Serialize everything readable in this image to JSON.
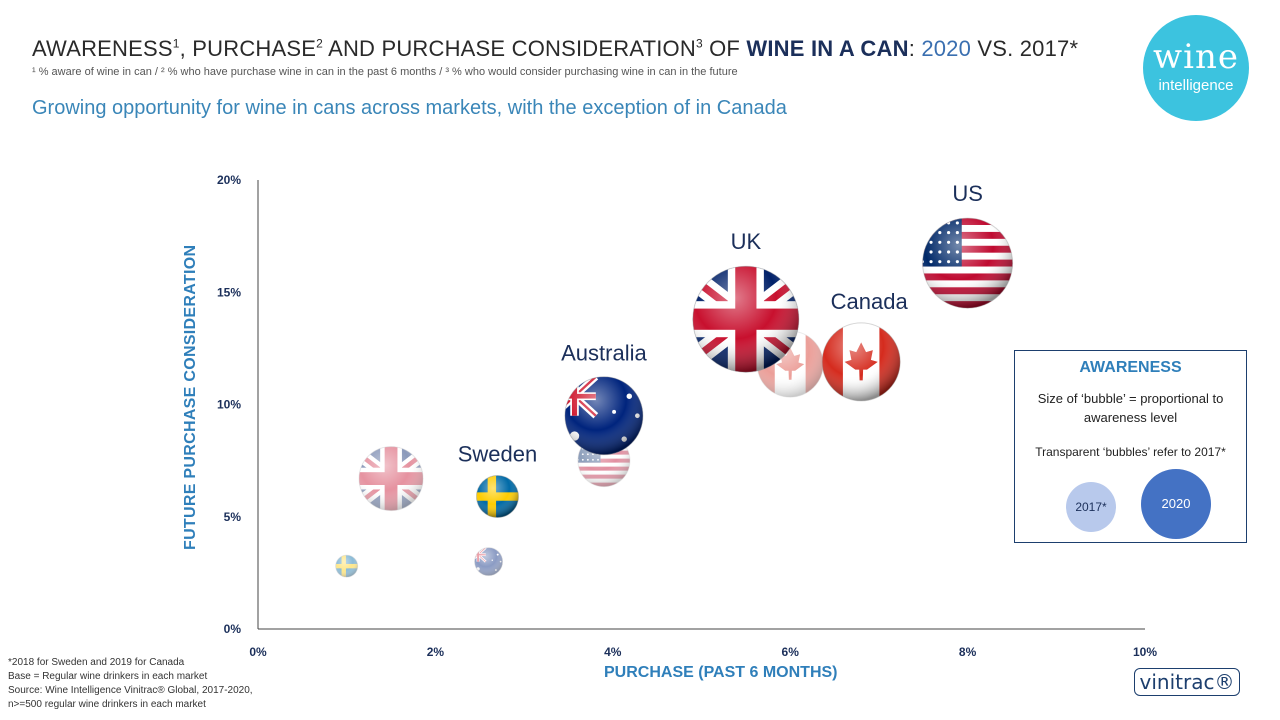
{
  "title": {
    "part1": "AWARENESS",
    "sup1": "1",
    "part2": ", PURCHASE",
    "sup2": "2",
    "part3": " AND PURCHASE CONSIDERATION",
    "sup3": "3",
    "part4": " OF ",
    "highlight": "WINE IN A CAN",
    "part5": ": ",
    "year_2020": "2020",
    "part6": " VS. 2017*"
  },
  "footnote_top": "¹ % aware of wine in can / ² % who have purchase wine in can in the past 6 months / ³ % who would consider purchasing wine in can in the future",
  "subtitle": "Growing opportunity  for wine in cans across markets, with the exception of in Canada",
  "logo": {
    "line1": "wine",
    "line2": "intelligence"
  },
  "chart_data": {
    "type": "scatter",
    "xlabel": "PURCHASE (PAST 6 MONTHS)",
    "ylabel": "FUTURE PURCHASE CONSIDERATION",
    "xlim": [
      0,
      10
    ],
    "ylim": [
      0,
      20
    ],
    "xticks": [
      "0%",
      "2%",
      "4%",
      "6%",
      "8%",
      "10%"
    ],
    "yticks": [
      "0%",
      "5%",
      "10%",
      "15%",
      "20%"
    ],
    "grid": false,
    "size_encodes": "awareness",
    "series": [
      {
        "name": "2017*",
        "points": [
          {
            "market": "Sweden",
            "flag": "sweden-flag",
            "x": 1.0,
            "y": 2.8,
            "size": 11
          },
          {
            "market": "Australia",
            "flag": "australia-flag",
            "x": 2.6,
            "y": 3.0,
            "size": 14
          },
          {
            "market": "UK",
            "flag": "uk-flag",
            "x": 1.5,
            "y": 6.7,
            "size": 32
          },
          {
            "market": "US",
            "flag": "us-flag",
            "x": 3.9,
            "y": 7.5,
            "size": 26
          },
          {
            "market": "Canada",
            "flag": "canada-flag",
            "x": 6.0,
            "y": 11.8,
            "size": 33
          }
        ]
      },
      {
        "name": "2020",
        "points": [
          {
            "market": "Sweden",
            "label": "Sweden",
            "flag": "sweden-flag",
            "x": 2.7,
            "y": 5.9,
            "size": 21
          },
          {
            "market": "Australia",
            "label": "Australia",
            "flag": "australia-flag",
            "x": 3.9,
            "y": 9.5,
            "size": 39
          },
          {
            "market": "UK",
            "label": "UK",
            "flag": "uk-flag",
            "x": 5.5,
            "y": 13.8,
            "size": 53
          },
          {
            "market": "Canada",
            "label": "Canada",
            "flag": "canada-flag",
            "x": 6.8,
            "y": 11.9,
            "size": 39
          },
          {
            "market": "US",
            "label": "US",
            "flag": "us-flag",
            "x": 8.0,
            "y": 16.3,
            "size": 45
          }
        ]
      }
    ]
  },
  "legend": {
    "title": "AWARENESS",
    "desc": "Size of ‘bubble’ = proportional to awareness level",
    "transparent_note": "Transparent ‘bubbles’ refer to 2017*",
    "label_2017": "2017*",
    "label_2020": "2020"
  },
  "notes": {
    "line1": "*2018 for Sweden and 2019 for Canada",
    "line2": "Base = Regular wine drinkers in each market",
    "line3": "Source: Wine Intelligence Vinitrac® Global, 2017-2020,",
    "line4": "n>=500 regular wine drinkers in each market"
  },
  "brand": "vinitrac®"
}
